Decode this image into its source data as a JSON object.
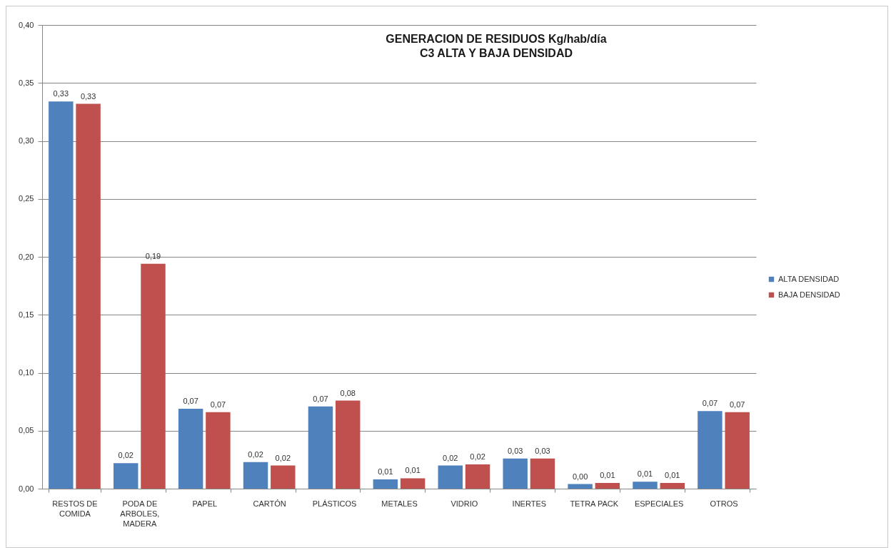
{
  "chart_data": {
    "type": "bar",
    "title": "GENERACION DE RESIDUOS Kg/hab/día\nC3 ALTA Y BAJA DENSIDAD",
    "categories": [
      "RESTOS DE COMIDA",
      "PODA DE ARBOLES, MADERA",
      "PAPEL",
      "CARTÓN",
      "PLÁSTICOS",
      "METALES",
      "VIDRIO",
      "INERTES",
      "TETRA PACK",
      "ESPECIALES",
      "OTROS"
    ],
    "series": [
      {
        "name": "ALTA DENSIDAD",
        "color": "#4f81bd",
        "values": [
          0.334,
          0.022,
          0.069,
          0.023,
          0.071,
          0.008,
          0.02,
          0.026,
          0.004,
          0.006,
          0.067
        ],
        "value_labels": [
          "0,33",
          "0,02",
          "0,07",
          "0,02",
          "0,07",
          "0,01",
          "0,02",
          "0,03",
          "0,00",
          "0,01",
          "0,07"
        ]
      },
      {
        "name": "BAJA DENSIDAD",
        "color": "#c0504d",
        "values": [
          0.332,
          0.194,
          0.066,
          0.02,
          0.076,
          0.009,
          0.021,
          0.026,
          0.005,
          0.005,
          0.066
        ],
        "value_labels": [
          "0,33",
          "0,19",
          "0,07",
          "0,02",
          "0,08",
          "0,01",
          "0,02",
          "0,03",
          "0,01",
          "0,01",
          "0,07"
        ]
      }
    ],
    "ylim": [
      0,
      0.4
    ],
    "yticks": [
      {
        "value": 0,
        "label": "0,00"
      },
      {
        "value": 0.05,
        "label": "0,05"
      },
      {
        "value": 0.1,
        "label": "0,10"
      },
      {
        "value": 0.15,
        "label": "0,15"
      },
      {
        "value": 0.2,
        "label": "0,20"
      },
      {
        "value": 0.25,
        "label": "0,25"
      },
      {
        "value": 0.3,
        "label": "0,30"
      },
      {
        "value": 0.35,
        "label": "0,35"
      },
      {
        "value": 0.4,
        "label": "0,40"
      }
    ],
    "grid": "y",
    "legend": "right"
  }
}
